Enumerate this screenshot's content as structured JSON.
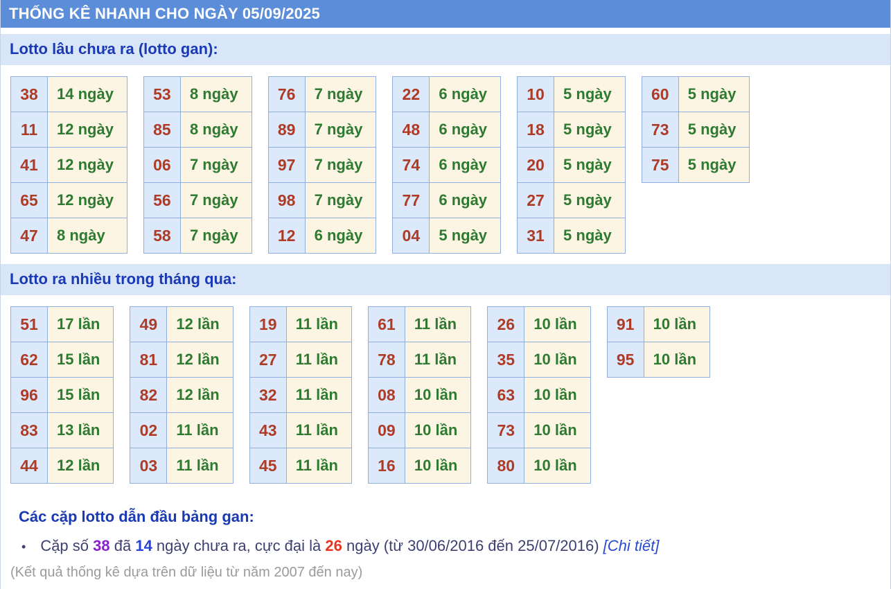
{
  "colors": {
    "header_bar": "#5b8dd9",
    "section_bar_bg": "#d9e6f8",
    "section_title": "#1a39b5",
    "number_cell_bg": "#dce9fb",
    "value_cell_bg": "#fcf5e4",
    "number_text": "#ad3b26",
    "value_text": "#2d7a30",
    "table_border": "#8fafdf",
    "body_text": "#3d3f70",
    "highlight_purple": "#8a1fd1",
    "highlight_blue": "#2742de",
    "highlight_red": "#e83420",
    "link_blue": "#2949cf",
    "footer_gray": "#9a9a9a"
  },
  "header": {
    "title": "THỐNG KÊ NHANH CHO NGÀY 05/09/2025"
  },
  "gan_section": {
    "title": "Lotto lâu chưa ra (lotto gan):",
    "unit": "ngày",
    "tables": [
      [
        [
          "38",
          "14 ngày"
        ],
        [
          "11",
          "12 ngày"
        ],
        [
          "41",
          "12 ngày"
        ],
        [
          "65",
          "12 ngày"
        ],
        [
          "47",
          "8 ngày"
        ]
      ],
      [
        [
          "53",
          "8 ngày"
        ],
        [
          "85",
          "8 ngày"
        ],
        [
          "06",
          "7 ngày"
        ],
        [
          "56",
          "7 ngày"
        ],
        [
          "58",
          "7 ngày"
        ]
      ],
      [
        [
          "76",
          "7 ngày"
        ],
        [
          "89",
          "7 ngày"
        ],
        [
          "97",
          "7 ngày"
        ],
        [
          "98",
          "7 ngày"
        ],
        [
          "12",
          "6 ngày"
        ]
      ],
      [
        [
          "22",
          "6 ngày"
        ],
        [
          "48",
          "6 ngày"
        ],
        [
          "74",
          "6 ngày"
        ],
        [
          "77",
          "6 ngày"
        ],
        [
          "04",
          "5 ngày"
        ]
      ],
      [
        [
          "10",
          "5 ngày"
        ],
        [
          "18",
          "5 ngày"
        ],
        [
          "20",
          "5 ngày"
        ],
        [
          "27",
          "5 ngày"
        ],
        [
          "31",
          "5 ngày"
        ]
      ],
      [
        [
          "60",
          "5 ngày"
        ],
        [
          "73",
          "5 ngày"
        ],
        [
          "75",
          "5 ngày"
        ]
      ]
    ]
  },
  "frequent_section": {
    "title": "Lotto ra nhiều trong tháng qua:",
    "unit": "lần",
    "tables": [
      [
        [
          "51",
          "17 lần"
        ],
        [
          "62",
          "15 lần"
        ],
        [
          "96",
          "15 lần"
        ],
        [
          "83",
          "13 lần"
        ],
        [
          "44",
          "12 lần"
        ]
      ],
      [
        [
          "49",
          "12 lần"
        ],
        [
          "81",
          "12 lần"
        ],
        [
          "82",
          "12 lần"
        ],
        [
          "02",
          "11 lần"
        ],
        [
          "03",
          "11 lần"
        ]
      ],
      [
        [
          "19",
          "11 lần"
        ],
        [
          "27",
          "11 lần"
        ],
        [
          "32",
          "11 lần"
        ],
        [
          "43",
          "11 lần"
        ],
        [
          "45",
          "11 lần"
        ]
      ],
      [
        [
          "61",
          "11 lần"
        ],
        [
          "78",
          "11 lần"
        ],
        [
          "08",
          "10 lần"
        ],
        [
          "09",
          "10 lần"
        ],
        [
          "16",
          "10 lần"
        ]
      ],
      [
        [
          "26",
          "10 lần"
        ],
        [
          "35",
          "10 lần"
        ],
        [
          "63",
          "10 lần"
        ],
        [
          "73",
          "10 lần"
        ],
        [
          "80",
          "10 lần"
        ]
      ],
      [
        [
          "91",
          "10 lần"
        ],
        [
          "95",
          "10 lần"
        ]
      ]
    ]
  },
  "leaders_section": {
    "title": "Các cặp lotto dẫn đầu bảng gan:",
    "bullet_glyph": "•",
    "bullet_segments": [
      {
        "text": "Cặp số ",
        "name": "bullet-text-segment"
      },
      {
        "text": "38",
        "class": "hl-purple",
        "name": "leader-pair-number"
      },
      {
        "text": " đã ",
        "name": "bullet-text-segment"
      },
      {
        "text": "14",
        "class": "hl-blue",
        "name": "days-missing-count"
      },
      {
        "text": " ngày chưa ra, cực đại là ",
        "name": "bullet-text-segment"
      },
      {
        "text": "26",
        "class": "hl-red",
        "name": "max-days-count"
      },
      {
        "text": " ngày (từ 30/06/2016 đến 25/07/2016) ",
        "name": "bullet-text-segment"
      },
      {
        "text": "[Chi tiết]",
        "class": "link",
        "link": true,
        "name": "detail-link"
      }
    ]
  },
  "footer": {
    "note": "(Kết quả thống kê dựa trên dữ liệu từ năm 2007 đến nay)"
  }
}
